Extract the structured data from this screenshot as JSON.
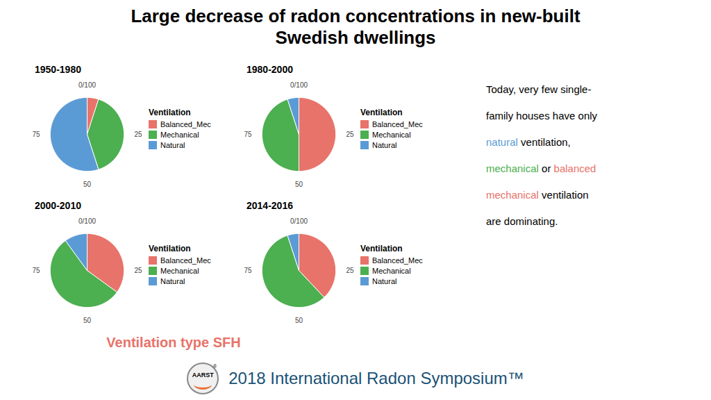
{
  "chart_data": [
    {
      "type": "pie",
      "title": "1950-1980",
      "categories": [
        "Balanced_Mec",
        "Mechanical",
        "Natural"
      ],
      "values": [
        5,
        40,
        55
      ],
      "colors": [
        "#E8736A",
        "#4CAF50",
        "#5B9BD5"
      ],
      "ticks": [
        {
          "value": 0,
          "label": "0/100"
        },
        25,
        50,
        75
      ],
      "legend": "right",
      "legend_title": "Ventilation"
    },
    {
      "type": "pie",
      "title": "1980-2000",
      "categories": [
        "Balanced_Mec",
        "Mechanical",
        "Natural"
      ],
      "values": [
        50,
        45,
        5
      ],
      "colors": [
        "#E8736A",
        "#4CAF50",
        "#5B9BD5"
      ],
      "ticks": [
        {
          "value": 0,
          "label": "0/100"
        },
        25,
        50,
        75
      ],
      "legend": "right",
      "legend_title": "Ventilation"
    },
    {
      "type": "pie",
      "title": "2000-2010",
      "categories": [
        "Balanced_Mec",
        "Mechanical",
        "Natural"
      ],
      "values": [
        35,
        55,
        10
      ],
      "colors": [
        "#E8736A",
        "#4CAF50",
        "#5B9BD5"
      ],
      "ticks": [
        {
          "value": 0,
          "label": "0/100"
        },
        25,
        50,
        75
      ],
      "legend": "right",
      "legend_title": "Ventilation"
    },
    {
      "type": "pie",
      "title": "2014-2016",
      "categories": [
        "Balanced_Mec",
        "Mechanical",
        "Natural"
      ],
      "values": [
        38,
        57,
        5
      ],
      "colors": [
        "#E8736A",
        "#4CAF50",
        "#5B9BD5"
      ],
      "ticks": [
        {
          "value": 0,
          "label": "0/100"
        },
        25,
        50,
        75
      ],
      "legend": "right",
      "legend_title": "Ventilation"
    }
  ],
  "title_lines": [
    "Large decrease of radon concentrations in new-built",
    "Swedish dwellings"
  ],
  "annotation_lines": [
    [
      {
        "text": "Today, very few single-",
        "color": "black"
      }
    ],
    [
      {
        "text": "family houses have only",
        "color": "black"
      }
    ],
    [
      {
        "text": "natural",
        "color": "#5B9BD5"
      },
      {
        "text": " ventilation,",
        "color": "black"
      }
    ],
    [
      {
        "text": "mechanical",
        "color": "#4CAF50"
      },
      {
        "text": " or ",
        "color": "black"
      },
      {
        "text": "balanced",
        "color": "#E8736A"
      }
    ],
    [
      {
        "text": "mechanical",
        "color": "#E8736A"
      },
      {
        "text": " ventilation",
        "color": "black"
      }
    ],
    [
      {
        "text": "are dominating.",
        "color": "black"
      }
    ]
  ],
  "xlabel": "Ventilation type SFH",
  "xlabel_color": "#E8736A",
  "footer": "2018 International Radon Symposium™",
  "footer_color": "#1A5276",
  "logo_text": "AARST",
  "logo_mark": "®"
}
